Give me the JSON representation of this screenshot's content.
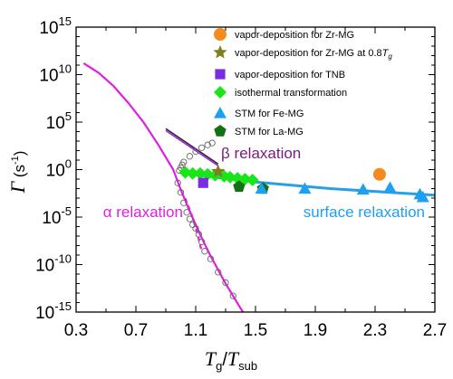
{
  "chart_data": {
    "type": "scatter",
    "x_axis": {
      "range": [
        0.3,
        2.7
      ],
      "ticks": [
        0.3,
        0.7,
        1.1,
        1.5,
        1.9,
        2.3,
        2.7
      ],
      "tick_labels": [
        "0.3",
        "0.7",
        "1.1",
        "1.5",
        "1.9",
        "2.3",
        "2.7"
      ],
      "label_main": "T",
      "label_sub1": "g",
      "label_slash": "/",
      "label_main2": "T",
      "label_sub2": "sub"
    },
    "y_axis": {
      "scale": "log",
      "range_exponent": [
        -15,
        15
      ],
      "ticks_exponent": [
        -15,
        -10,
        -5,
        0,
        5,
        10,
        15
      ],
      "tick_base": "10",
      "tick_exponents": [
        "-15",
        "-10",
        "-5",
        "0",
        "5",
        "10",
        "15"
      ],
      "label_main": "Γ",
      "label_unit": " (s",
      "label_unit_exp": "-1",
      "label_unit_close": ")"
    },
    "grid": false,
    "legend_position": "top-right",
    "series": [
      {
        "name": "vapor-deposition for Zr-MG",
        "marker": "circle",
        "color": "#F58A1F",
        "points": [
          {
            "x": 2.33,
            "y_exp": -0.5
          }
        ]
      },
      {
        "name": "vapor-deposition for Zr-MG at 0.8T",
        "name_sub": "g",
        "marker": "star",
        "color": "#7F7F1C",
        "points": [
          {
            "x": 1.25,
            "y_exp": -0.2
          }
        ]
      },
      {
        "name": "vapor-deposition for TNB",
        "marker": "square",
        "color": "#7B2BE0",
        "points": [
          {
            "x": 1.15,
            "y_exp": -1.4
          }
        ]
      },
      {
        "name": "isothermal transformation",
        "marker": "diamond",
        "color": "#19E519",
        "points": [
          {
            "x": 1.03,
            "y_exp": -0.3
          },
          {
            "x": 1.08,
            "y_exp": -0.4
          },
          {
            "x": 1.13,
            "y_exp": -0.4
          },
          {
            "x": 1.18,
            "y_exp": -0.5
          },
          {
            "x": 1.23,
            "y_exp": -0.6
          },
          {
            "x": 1.29,
            "y_exp": -0.7
          },
          {
            "x": 1.33,
            "y_exp": -0.8
          },
          {
            "x": 1.38,
            "y_exp": -0.9
          },
          {
            "x": 1.43,
            "y_exp": -1.0
          },
          {
            "x": 1.48,
            "y_exp": -1.1
          }
        ]
      },
      {
        "name": "STM for Fe-MG",
        "marker": "triangle",
        "color": "#1E9FF0",
        "points": [
          {
            "x": 1.54,
            "y_exp": -2.0
          },
          {
            "x": 1.83,
            "y_exp": -2.0
          },
          {
            "x": 2.22,
            "y_exp": -2.1
          },
          {
            "x": 2.4,
            "y_exp": -1.9
          },
          {
            "x": 2.6,
            "y_exp": -2.6
          },
          {
            "x": 2.62,
            "y_exp": -2.9
          }
        ]
      },
      {
        "name": "STM for La-MG",
        "marker": "pentagon",
        "color": "#147014",
        "points": [
          {
            "x": 1.39,
            "y_exp": -1.8
          },
          {
            "x": 1.55,
            "y_exp": -2.0
          }
        ]
      }
    ],
    "open_circles": [
      {
        "x": 0.98,
        "y_exp": -1.4
      },
      {
        "x": 1.0,
        "y_exp": -2.4
      },
      {
        "x": 1.02,
        "y_exp": -3.5
      },
      {
        "x": 1.04,
        "y_exp": -4.5
      },
      {
        "x": 1.06,
        "y_exp": -5.2
      },
      {
        "x": 1.08,
        "y_exp": -5.8
      },
      {
        "x": 1.1,
        "y_exp": -6.2
      },
      {
        "x": 1.12,
        "y_exp": -6.8
      },
      {
        "x": 1.14,
        "y_exp": -7.6
      },
      {
        "x": 1.16,
        "y_exp": -8.6
      },
      {
        "x": 1.2,
        "y_exp": -9.4
      },
      {
        "x": 1.25,
        "y_exp": -10.8
      },
      {
        "x": 1.3,
        "y_exp": -11.9
      },
      {
        "x": 1.35,
        "y_exp": -13.3
      },
      {
        "x": 0.99,
        "y_exp": -0.1
      },
      {
        "x": 1.0,
        "y_exp": 0.2
      },
      {
        "x": 1.01,
        "y_exp": 0.5
      },
      {
        "x": 1.02,
        "y_exp": 0.8
      },
      {
        "x": 1.06,
        "y_exp": 1.4
      },
      {
        "x": 1.1,
        "y_exp": 1.9
      },
      {
        "x": 1.14,
        "y_exp": 2.3
      },
      {
        "x": 1.18,
        "y_exp": 2.6
      },
      {
        "x": 1.21,
        "y_exp": 2.8
      }
    ],
    "curves": {
      "alpha_fit": {
        "color": "#E01FE0",
        "points": [
          [
            0.35,
            11.2
          ],
          [
            0.45,
            10.2
          ],
          [
            0.55,
            8.8
          ],
          [
            0.65,
            7.0
          ],
          [
            0.75,
            5.0
          ],
          [
            0.85,
            2.6
          ],
          [
            0.95,
            0.0
          ],
          [
            1.0,
            -2.1
          ],
          [
            1.05,
            -4.0
          ],
          [
            1.1,
            -5.8
          ],
          [
            1.15,
            -7.5
          ],
          [
            1.2,
            -9.1
          ],
          [
            1.3,
            -12.0
          ],
          [
            1.4,
            -14.6
          ],
          [
            1.45,
            -15.8
          ]
        ]
      },
      "alpha_dashed": {
        "color": "#E01FE0",
        "points": [
          [
            1.03,
            -3.0
          ],
          [
            1.07,
            -4.6
          ],
          [
            1.11,
            -6.6
          ],
          [
            1.14,
            -8.6
          ]
        ]
      },
      "beta_dark": {
        "color": "#4A0F30",
        "points": [
          [
            0.9,
            4.3
          ],
          [
            1.25,
            0.6
          ]
        ]
      },
      "beta_purple": {
        "color": "#7B2BE0",
        "points": [
          [
            0.9,
            4.1
          ],
          [
            1.25,
            0.4
          ]
        ]
      },
      "surface": {
        "color": "#2A9FE6",
        "points": [
          [
            1.02,
            -0.4
          ],
          [
            1.5,
            -1.3
          ],
          [
            2.0,
            -2.0
          ],
          [
            2.5,
            -2.5
          ],
          [
            2.7,
            -2.7
          ]
        ]
      }
    },
    "legend": [
      {
        "label": "vapor-deposition for Zr-MG",
        "label_tail": "",
        "marker": "circle",
        "color": "#F58A1F"
      },
      {
        "label": "vapor-deposition for Zr-MG at 0.8",
        "label_tail": "T",
        "label_sub": "g",
        "marker": "star",
        "color": "#7F7F1C"
      },
      {
        "label": "vapor-deposition for TNB",
        "label_tail": "",
        "marker": "square",
        "color": "#7B2BE0"
      },
      {
        "label": "isothermal transformation",
        "label_tail": "",
        "marker": "diamond",
        "color": "#19E519"
      },
      {
        "label": "STM for Fe-MG",
        "label_tail": "",
        "marker": "triangle",
        "color": "#1E9FF0"
      },
      {
        "label": "STM for La-MG",
        "label_tail": "",
        "marker": "pentagon",
        "color": "#147014"
      }
    ],
    "annotations": [
      {
        "text": "β relaxation",
        "color": "#7A1A7A",
        "anchor": {
          "x": 1.27,
          "y_exp": 1.2
        }
      },
      {
        "text": "α relaxation",
        "color": "#E01FE0",
        "anchor": {
          "x": 0.48,
          "y_exp": -5.0
        }
      },
      {
        "text": "surface relaxation",
        "color": "#1E9FF0",
        "anchor": {
          "x": 1.82,
          "y_exp": -5.0
        }
      }
    ]
  }
}
